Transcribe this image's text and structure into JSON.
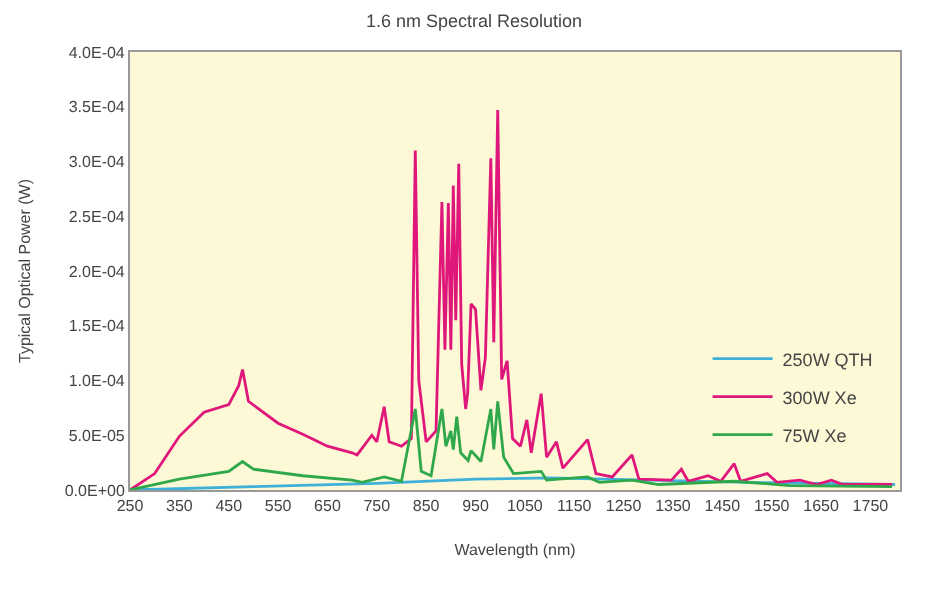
{
  "chart_data": {
    "type": "line",
    "title": "1.6 nm Spectral Resolution",
    "xlabel": "Wavelength (nm)",
    "ylabel": "Typical Optical Power (W)",
    "xlim": [
      250,
      1810
    ],
    "xticks": [
      250,
      350,
      450,
      550,
      650,
      750,
      850,
      950,
      1050,
      1150,
      1250,
      1350,
      1450,
      1550,
      1650,
      1750
    ],
    "ylim": [
      0,
      0.0004
    ],
    "yticks": [
      {
        "value": 0,
        "label": "0.0E+00"
      },
      {
        "value": 5e-05,
        "label": "5.0E-05"
      },
      {
        "value": 0.0001,
        "label": "1.0E-04"
      },
      {
        "value": 0.00015,
        "label": "1.5E-04"
      },
      {
        "value": 0.0002,
        "label": "2.0E-04"
      },
      {
        "value": 0.00025,
        "label": "2.5E-04"
      },
      {
        "value": 0.0003,
        "label": "3.0E-04"
      },
      {
        "value": 0.00035,
        "label": "3.5E-04"
      },
      {
        "value": 0.0004,
        "label": "4.0E-04"
      }
    ],
    "grid": false,
    "legend": "bottom right",
    "marker": "none",
    "line_style": "solid",
    "series": [
      {
        "name": "250W QTH",
        "color": "#3fb1d8",
        "x": [
          250,
          500,
          750,
          950,
          1100,
          1300,
          1500,
          1800
        ],
        "values": [
          0,
          3e-06,
          6e-06,
          1e-05,
          1.1e-05,
          9e-06,
          7e-06,
          5e-06
        ]
      },
      {
        "name": "300W Xe",
        "color": "#e0177a",
        "x": [
          250,
          300,
          350,
          400,
          450,
          470,
          478,
          490,
          550,
          600,
          650,
          700,
          710,
          740,
          750,
          765,
          775,
          800,
          820,
          828,
          835,
          850,
          870,
          882,
          888,
          895,
          900,
          905,
          910,
          916,
          922,
          930,
          934,
          941,
          950,
          961,
          970,
          981,
          987,
          995,
          1003,
          1014,
          1025,
          1041,
          1054,
          1063,
          1083,
          1094,
          1114,
          1127,
          1177,
          1194,
          1227,
          1267,
          1281,
          1347,
          1367,
          1381,
          1421,
          1447,
          1474,
          1487,
          1541,
          1561,
          1607,
          1641,
          1671,
          1694,
          1794
        ],
        "values": [
          0,
          1.5e-05,
          4.9e-05,
          7.1e-05,
          7.8e-05,
          9.5e-05,
          0.00011,
          8.1e-05,
          6.1e-05,
          5.1e-05,
          4e-05,
          3.4e-05,
          3.2e-05,
          5e-05,
          4.4e-05,
          7.6e-05,
          4.4e-05,
          4e-05,
          4.7e-05,
          0.00031,
          0.0001,
          4.4e-05,
          5.4e-05,
          0.000263,
          0.000128,
          0.000262,
          0.000128,
          0.000278,
          0.000155,
          0.000298,
          0.000115,
          7.4e-05,
          8.8e-05,
          0.00017,
          0.000165,
          9.1e-05,
          0.000121,
          0.000303,
          0.000135,
          0.000347,
          0.000101,
          0.000118,
          4.7e-05,
          4e-05,
          6.4e-05,
          3.4e-05,
          8.8e-05,
          3e-05,
          4.4e-05,
          2e-05,
          4.6e-05,
          1.5e-05,
          1.2e-05,
          3.2e-05,
          1e-05,
          9e-06,
          1.9e-05,
          8e-06,
          1.3e-05,
          8e-06,
          2.4e-05,
          8e-06,
          1.5e-05,
          7e-06,
          9e-06,
          5e-06,
          9e-06,
          5e-06,
          5e-06
        ]
      },
      {
        "name": "75W Xe",
        "color": "#2ea84a",
        "x": [
          250,
          350,
          450,
          478,
          500,
          600,
          700,
          720,
          765,
          800,
          828,
          840,
          860,
          882,
          890,
          900,
          905,
          912,
          920,
          935,
          941,
          961,
          981,
          987,
          995,
          1007,
          1027,
          1083,
          1094,
          1177,
          1201,
          1267,
          1321,
          1474,
          1587,
          1794
        ],
        "values": [
          0,
          1e-05,
          1.7e-05,
          2.6e-05,
          1.9e-05,
          1.3e-05,
          9e-06,
          7e-06,
          1.2e-05,
          8e-06,
          7.4e-05,
          1.7e-05,
          1.3e-05,
          7.4e-05,
          4e-05,
          5.4e-05,
          3.7e-05,
          6.7e-05,
          3.4e-05,
          2.7e-05,
          3.6e-05,
          2.6e-05,
          7.4e-05,
          3.7e-05,
          8.1e-05,
          3e-05,
          1.5e-05,
          1.7e-05,
          9e-06,
          1.2e-05,
          7e-06,
          9e-06,
          5e-06,
          8e-06,
          4e-06,
          3e-06
        ]
      }
    ]
  }
}
